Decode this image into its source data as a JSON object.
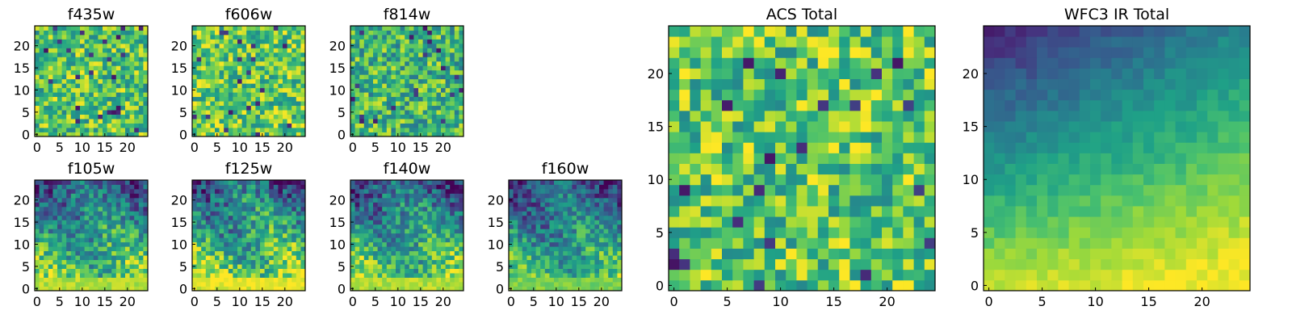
{
  "chart_data": [
    {
      "type": "heatmap",
      "title": "f435w",
      "xticks": [
        "0",
        "5",
        "10",
        "15",
        "20"
      ],
      "yticks": [
        "0",
        "5",
        "10",
        "15",
        "20"
      ],
      "xlim": [
        0,
        24
      ],
      "ylim": [
        0,
        24
      ],
      "grid_size": 25,
      "pattern": "noise",
      "brightness": 0.72
    },
    {
      "type": "heatmap",
      "title": "f606w",
      "xticks": [
        "0",
        "5",
        "10",
        "15",
        "20"
      ],
      "yticks": [
        "0",
        "5",
        "10",
        "15",
        "20"
      ],
      "xlim": [
        0,
        24
      ],
      "ylim": [
        0,
        24
      ],
      "grid_size": 25,
      "pattern": "noise",
      "brightness": 0.74
    },
    {
      "type": "heatmap",
      "title": "f814w",
      "xticks": [
        "0",
        "5",
        "10",
        "15",
        "20"
      ],
      "yticks": [
        "0",
        "5",
        "10",
        "15",
        "20"
      ],
      "xlim": [
        0,
        24
      ],
      "ylim": [
        0,
        24
      ],
      "grid_size": 25,
      "pattern": "noise",
      "brightness": 0.66
    },
    {
      "type": "heatmap",
      "title": "f105w",
      "xticks": [
        "0",
        "5",
        "10",
        "15",
        "20"
      ],
      "yticks": [
        "0",
        "5",
        "10",
        "15",
        "20"
      ],
      "xlim": [
        0,
        24
      ],
      "ylim": [
        0,
        24
      ],
      "grid_size": 25,
      "pattern": "gradient",
      "brightness": 0.55
    },
    {
      "type": "heatmap",
      "title": "f125w",
      "xticks": [
        "0",
        "5",
        "10",
        "15",
        "20"
      ],
      "yticks": [
        "0",
        "5",
        "10",
        "15",
        "20"
      ],
      "xlim": [
        0,
        24
      ],
      "ylim": [
        0,
        24
      ],
      "grid_size": 25,
      "pattern": "gradient",
      "brightness": 0.6
    },
    {
      "type": "heatmap",
      "title": "f140w",
      "xticks": [
        "0",
        "5",
        "10",
        "15",
        "20"
      ],
      "yticks": [
        "0",
        "5",
        "10",
        "15",
        "20"
      ],
      "xlim": [
        0,
        24
      ],
      "ylim": [
        0,
        24
      ],
      "grid_size": 25,
      "pattern": "gradient",
      "brightness": 0.55
    },
    {
      "type": "heatmap",
      "title": "f160w",
      "xticks": [
        "0",
        "5",
        "10",
        "15",
        "20"
      ],
      "yticks": [
        "0",
        "5",
        "10",
        "15",
        "20"
      ],
      "xlim": [
        0,
        24
      ],
      "ylim": [
        0,
        24
      ],
      "grid_size": 25,
      "pattern": "gradient",
      "brightness": 0.5
    },
    {
      "type": "heatmap",
      "title": "ACS Total",
      "xticks": [
        "0",
        "5",
        "10",
        "15",
        "20"
      ],
      "yticks": [
        "0",
        "5",
        "10",
        "15",
        "20"
      ],
      "xlim": [
        0,
        24
      ],
      "ylim": [
        0,
        24
      ],
      "grid_size": 25,
      "pattern": "noise",
      "brightness": 0.74
    },
    {
      "type": "heatmap",
      "title": "WFC3 IR Total",
      "xticks": [
        "0",
        "5",
        "10",
        "15",
        "20"
      ],
      "yticks": [
        "0",
        "5",
        "10",
        "15",
        "20"
      ],
      "xlim": [
        0,
        24
      ],
      "ylim": [
        0,
        24
      ],
      "grid_size": 25,
      "pattern": "smooth-gradient",
      "brightness": 0.55
    }
  ],
  "colormap": [
    "#440154",
    "#46327e",
    "#365c8d",
    "#277f8e",
    "#1fa187",
    "#4ac16d",
    "#a0da39",
    "#fde725"
  ]
}
